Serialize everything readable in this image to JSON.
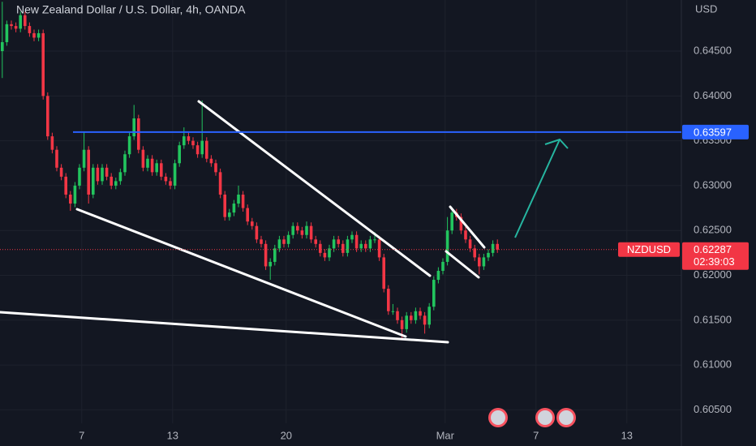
{
  "chart_data": {
    "type": "candlestick",
    "title": "New Zealand Dollar / U.S. Dollar, 4h, OANDA",
    "currency": "USD",
    "symbol": "NZDUSD",
    "countdown": "02:39:03",
    "up_color": "#22c55e",
    "down_color": "#f23645",
    "ylim": [
      0.6035,
      0.6507
    ],
    "yticks": [
      {
        "value": 0.605,
        "label": "0.60500"
      },
      {
        "value": 0.61,
        "label": "0.61000"
      },
      {
        "value": 0.615,
        "label": "0.61500"
      },
      {
        "value": 0.62,
        "label": "0.62000"
      },
      {
        "value": 0.625,
        "label": "0.62500"
      },
      {
        "value": 0.63,
        "label": "0.63000"
      },
      {
        "value": 0.635,
        "label": "0.63500"
      },
      {
        "value": 0.64,
        "label": "0.64000"
      },
      {
        "value": 0.645,
        "label": "0.64500"
      }
    ],
    "xlim": [
      0,
      150
    ],
    "xticks": [
      {
        "value": 18,
        "label": "7"
      },
      {
        "value": 38,
        "label": "13"
      },
      {
        "value": 63,
        "label": "20"
      },
      {
        "value": 98,
        "label": "Mar"
      },
      {
        "value": 118,
        "label": "7"
      },
      {
        "value": 138,
        "label": "13"
      }
    ],
    "horizontal_line": {
      "value": 0.63597,
      "color": "#2962ff"
    },
    "ohlc": [
      [
        0.645,
        0.6505,
        0.642,
        0.646
      ],
      [
        0.646,
        0.6484,
        0.6456,
        0.648
      ],
      [
        0.648,
        0.6484,
        0.6474,
        0.6478
      ],
      [
        0.6478,
        0.6482,
        0.6471,
        0.6475
      ],
      [
        0.6475,
        0.6494,
        0.6471,
        0.649
      ],
      [
        0.649,
        0.6494,
        0.6474,
        0.6478
      ],
      [
        0.6478,
        0.6482,
        0.6466,
        0.647
      ],
      [
        0.647,
        0.6474,
        0.6461,
        0.6465
      ],
      [
        0.6465,
        0.6474,
        0.6461,
        0.647
      ],
      [
        0.647,
        0.6474,
        0.6396,
        0.64
      ],
      [
        0.64,
        0.6404,
        0.6351,
        0.6355
      ],
      [
        0.6355,
        0.6359,
        0.6336,
        0.634
      ],
      [
        0.634,
        0.6344,
        0.6316,
        0.632
      ],
      [
        0.632,
        0.6324,
        0.6306,
        0.631
      ],
      [
        0.631,
        0.6314,
        0.6286,
        0.629
      ],
      [
        0.629,
        0.6294,
        0.6272,
        0.628
      ],
      [
        0.628,
        0.6304,
        0.6276,
        0.63
      ],
      [
        0.63,
        0.6324,
        0.6296,
        0.632
      ],
      [
        0.632,
        0.636,
        0.6316,
        0.634
      ],
      [
        0.634,
        0.6344,
        0.628,
        0.629
      ],
      [
        0.629,
        0.6324,
        0.6286,
        0.632
      ],
      [
        0.632,
        0.6324,
        0.6301,
        0.6305
      ],
      [
        0.6305,
        0.6324,
        0.6301,
        0.632
      ],
      [
        0.632,
        0.6324,
        0.6306,
        0.631
      ],
      [
        0.631,
        0.6314,
        0.6296,
        0.63
      ],
      [
        0.63,
        0.6309,
        0.6296,
        0.6305
      ],
      [
        0.6305,
        0.6319,
        0.6301,
        0.6315
      ],
      [
        0.6315,
        0.6339,
        0.6311,
        0.6335
      ],
      [
        0.6335,
        0.6359,
        0.6331,
        0.6355
      ],
      [
        0.6355,
        0.639,
        0.6351,
        0.6375
      ],
      [
        0.6375,
        0.6379,
        0.6336,
        0.634
      ],
      [
        0.634,
        0.6344,
        0.6316,
        0.632
      ],
      [
        0.632,
        0.6334,
        0.6316,
        0.633
      ],
      [
        0.633,
        0.6334,
        0.6311,
        0.6315
      ],
      [
        0.6315,
        0.6329,
        0.6311,
        0.6325
      ],
      [
        0.6325,
        0.6329,
        0.6306,
        0.631
      ],
      [
        0.631,
        0.6314,
        0.6301,
        0.6305
      ],
      [
        0.6305,
        0.6309,
        0.6296,
        0.63
      ],
      [
        0.63,
        0.6329,
        0.6296,
        0.6325
      ],
      [
        0.6325,
        0.6349,
        0.6321,
        0.6345
      ],
      [
        0.6345,
        0.6365,
        0.6341,
        0.6355
      ],
      [
        0.6355,
        0.6359,
        0.6346,
        0.635
      ],
      [
        0.635,
        0.6354,
        0.6341,
        0.6345
      ],
      [
        0.6345,
        0.6349,
        0.6331,
        0.6335
      ],
      [
        0.6335,
        0.6395,
        0.6331,
        0.635
      ],
      [
        0.635,
        0.6354,
        0.6326,
        0.633
      ],
      [
        0.633,
        0.6334,
        0.6321,
        0.6325
      ],
      [
        0.6325,
        0.6329,
        0.6311,
        0.6315
      ],
      [
        0.6315,
        0.6319,
        0.6286,
        0.629
      ],
      [
        0.629,
        0.6294,
        0.6261,
        0.6265
      ],
      [
        0.6265,
        0.6274,
        0.6261,
        0.627
      ],
      [
        0.627,
        0.6284,
        0.6266,
        0.628
      ],
      [
        0.628,
        0.63,
        0.6276,
        0.629
      ],
      [
        0.629,
        0.6294,
        0.6271,
        0.6275
      ],
      [
        0.6275,
        0.6279,
        0.6256,
        0.626
      ],
      [
        0.626,
        0.6264,
        0.6251,
        0.6255
      ],
      [
        0.6255,
        0.6259,
        0.6236,
        0.624
      ],
      [
        0.624,
        0.6244,
        0.6231,
        0.6235
      ],
      [
        0.6235,
        0.6239,
        0.6206,
        0.621
      ],
      [
        0.621,
        0.6219,
        0.6195,
        0.6215
      ],
      [
        0.6215,
        0.6234,
        0.6211,
        0.623
      ],
      [
        0.623,
        0.6244,
        0.6226,
        0.624
      ],
      [
        0.624,
        0.6244,
        0.6231,
        0.6235
      ],
      [
        0.6235,
        0.6249,
        0.6231,
        0.6245
      ],
      [
        0.6245,
        0.6259,
        0.6241,
        0.6255
      ],
      [
        0.6255,
        0.6259,
        0.6246,
        0.625
      ],
      [
        0.625,
        0.6254,
        0.6241,
        0.6245
      ],
      [
        0.6245,
        0.626,
        0.6241,
        0.6255
      ],
      [
        0.6255,
        0.6259,
        0.6236,
        0.624
      ],
      [
        0.624,
        0.6244,
        0.6231,
        0.6235
      ],
      [
        0.6235,
        0.6239,
        0.6221,
        0.6225
      ],
      [
        0.6225,
        0.6229,
        0.6216,
        0.622
      ],
      [
        0.622,
        0.6234,
        0.6216,
        0.623
      ],
      [
        0.623,
        0.6244,
        0.6226,
        0.624
      ],
      [
        0.624,
        0.6244,
        0.6231,
        0.6235
      ],
      [
        0.6235,
        0.6239,
        0.6221,
        0.6225
      ],
      [
        0.6225,
        0.6244,
        0.6221,
        0.624
      ],
      [
        0.624,
        0.6249,
        0.6236,
        0.6245
      ],
      [
        0.6245,
        0.6249,
        0.6226,
        0.623
      ],
      [
        0.623,
        0.6239,
        0.6226,
        0.6235
      ],
      [
        0.6235,
        0.6239,
        0.6226,
        0.623
      ],
      [
        0.623,
        0.6244,
        0.6226,
        0.624
      ],
      [
        0.624,
        0.6248,
        0.6236,
        0.624
      ],
      [
        0.624,
        0.6244,
        0.6216,
        0.622
      ],
      [
        0.622,
        0.6224,
        0.6181,
        0.6185
      ],
      [
        0.6185,
        0.6189,
        0.6156,
        0.616
      ],
      [
        0.616,
        0.6168,
        0.6156,
        0.616
      ],
      [
        0.616,
        0.6164,
        0.6146,
        0.615
      ],
      [
        0.615,
        0.6154,
        0.613,
        0.614
      ],
      [
        0.614,
        0.6159,
        0.6136,
        0.6155
      ],
      [
        0.6155,
        0.6159,
        0.6146,
        0.615
      ],
      [
        0.615,
        0.6164,
        0.6146,
        0.616
      ],
      [
        0.616,
        0.6164,
        0.6151,
        0.6155
      ],
      [
        0.6155,
        0.6159,
        0.6135,
        0.6145
      ],
      [
        0.6145,
        0.6169,
        0.6141,
        0.6165
      ],
      [
        0.6165,
        0.6199,
        0.6161,
        0.6195
      ],
      [
        0.6195,
        0.6209,
        0.6191,
        0.6205
      ],
      [
        0.6205,
        0.6219,
        0.6201,
        0.6215
      ],
      [
        0.6215,
        0.6265,
        0.6211,
        0.625
      ],
      [
        0.625,
        0.6276,
        0.6246,
        0.627
      ],
      [
        0.627,
        0.6274,
        0.6261,
        0.6265
      ],
      [
        0.6265,
        0.6269,
        0.6246,
        0.625
      ],
      [
        0.625,
        0.6254,
        0.6236,
        0.624
      ],
      [
        0.624,
        0.6244,
        0.6226,
        0.623
      ],
      [
        0.623,
        0.6234,
        0.6216,
        0.622
      ],
      [
        0.622,
        0.6224,
        0.6201,
        0.621
      ],
      [
        0.621,
        0.6224,
        0.6206,
        0.622
      ],
      [
        0.622,
        0.6229,
        0.6216,
        0.6225
      ],
      [
        0.6225,
        0.6239,
        0.6221,
        0.6235
      ],
      [
        0.6235,
        0.624,
        0.6225,
        0.62287
      ]
    ]
  }
}
